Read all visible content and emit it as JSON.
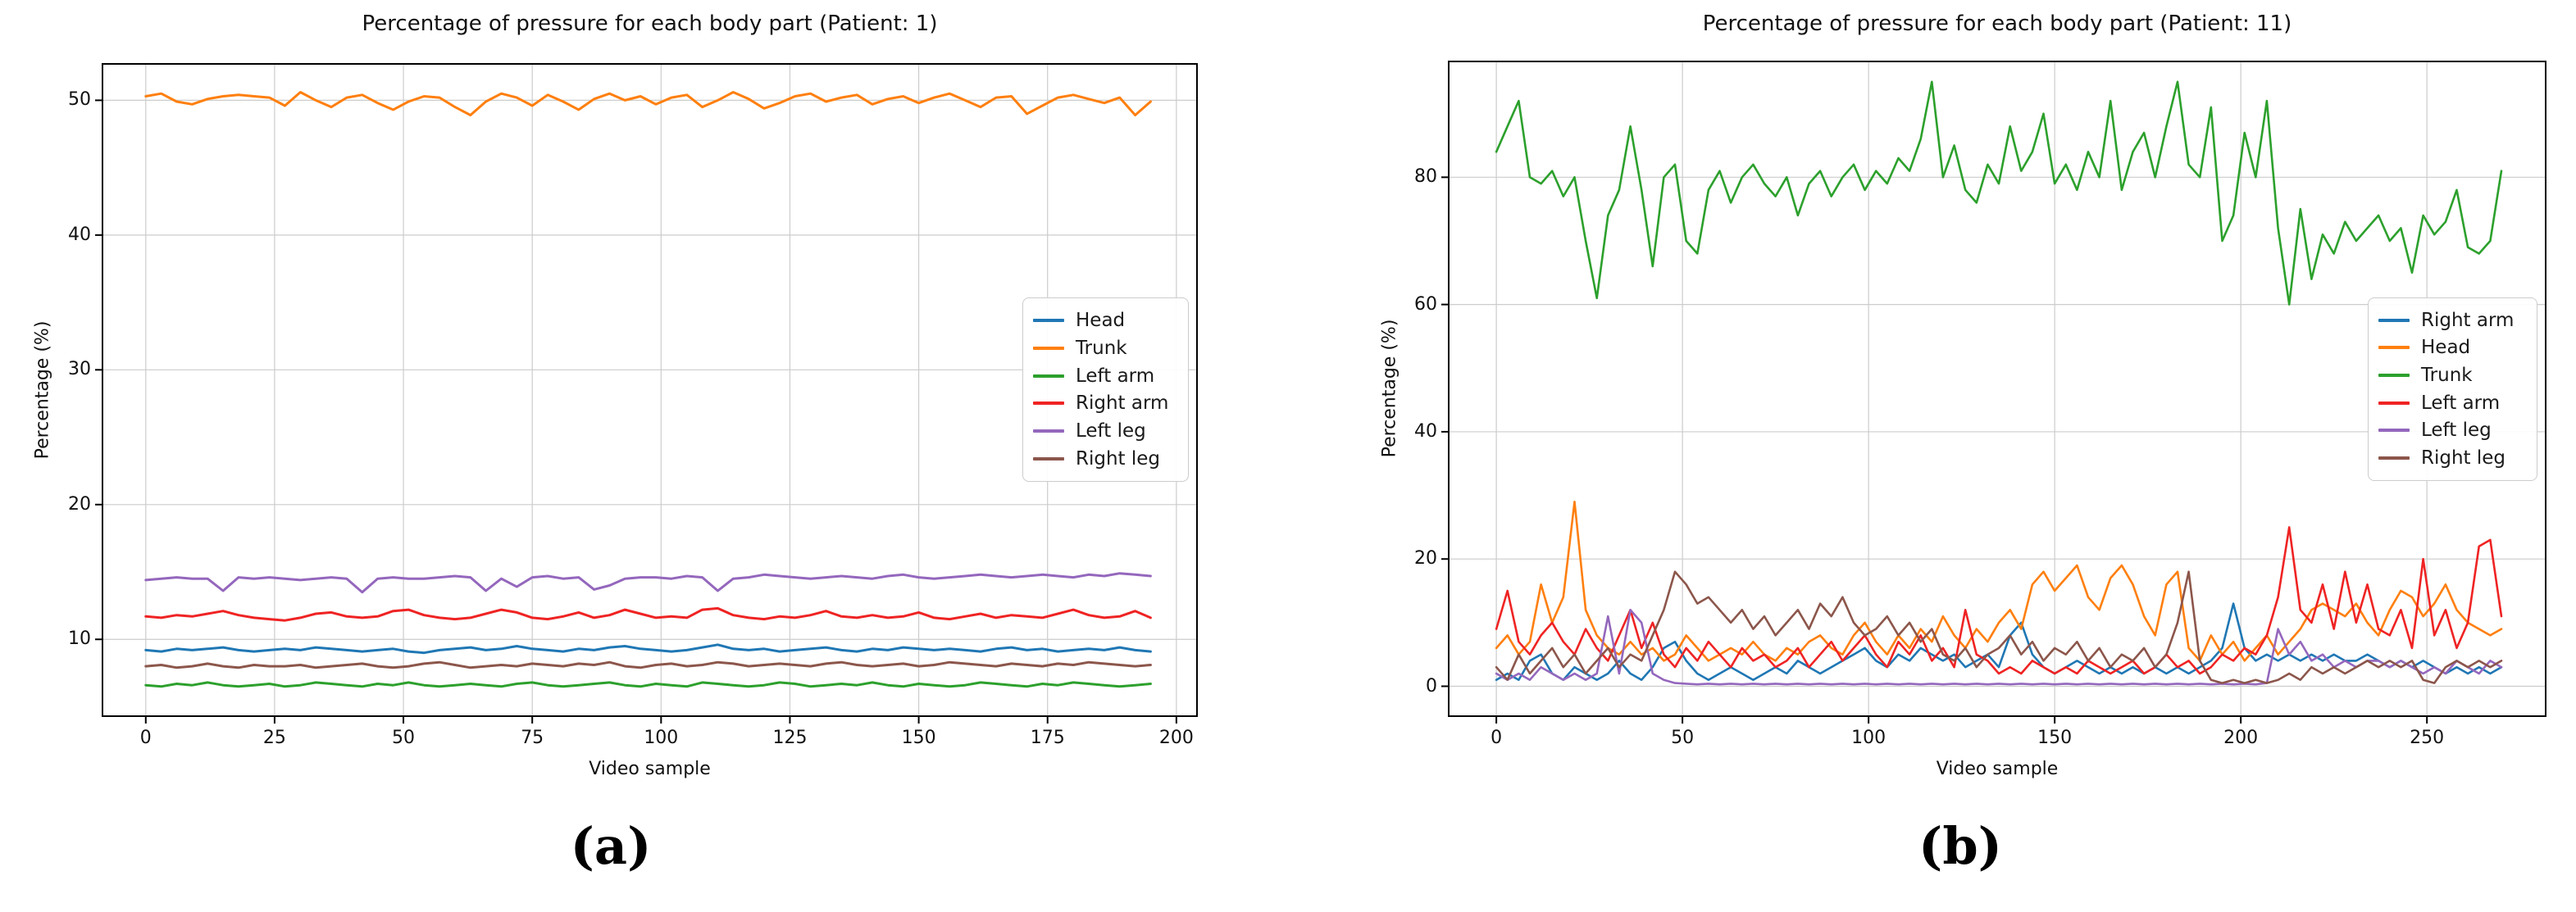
{
  "captions": {
    "a": "(a)",
    "b": "(b)"
  },
  "chart_data": [
    {
      "type": "line",
      "title": "Percentage of pressure for each body part (Patient: 1)",
      "xlabel": "Video sample",
      "ylabel": "Percentage (%)",
      "xlim": [
        -8.4,
        204.0
      ],
      "ylim": [
        4.3,
        52.7
      ],
      "x_ticks": [
        0,
        25,
        50,
        75,
        100,
        125,
        150,
        175,
        200
      ],
      "y_ticks": [
        10,
        20,
        30,
        40,
        50
      ],
      "grid": true,
      "legend_position": "center right",
      "x_start": 0,
      "x_step": 3,
      "series": [
        {
          "name": "Head",
          "color": "#1f77b4",
          "values": [
            9.2,
            9.1,
            9.3,
            9.2,
            9.3,
            9.4,
            9.2,
            9.1,
            9.2,
            9.3,
            9.2,
            9.4,
            9.3,
            9.2,
            9.1,
            9.2,
            9.3,
            9.1,
            9.0,
            9.2,
            9.3,
            9.4,
            9.2,
            9.3,
            9.5,
            9.3,
            9.2,
            9.1,
            9.3,
            9.2,
            9.4,
            9.5,
            9.3,
            9.2,
            9.1,
            9.2,
            9.4,
            9.6,
            9.3,
            9.2,
            9.3,
            9.1,
            9.2,
            9.3,
            9.4,
            9.2,
            9.1,
            9.3,
            9.2,
            9.4,
            9.3,
            9.2,
            9.3,
            9.2,
            9.1,
            9.3,
            9.4,
            9.2,
            9.3,
            9.1,
            9.2,
            9.3,
            9.2,
            9.4,
            9.2,
            9.1
          ]
        },
        {
          "name": "Trunk",
          "color": "#ff7f0e",
          "values": [
            50.3,
            50.5,
            49.9,
            49.7,
            50.1,
            50.3,
            50.4,
            50.3,
            50.2,
            49.6,
            50.6,
            50.0,
            49.5,
            50.2,
            50.4,
            49.8,
            49.3,
            49.9,
            50.3,
            50.2,
            49.5,
            48.9,
            49.9,
            50.5,
            50.2,
            49.6,
            50.4,
            49.9,
            49.3,
            50.1,
            50.5,
            50.0,
            50.3,
            49.7,
            50.2,
            50.4,
            49.5,
            50.0,
            50.6,
            50.1,
            49.4,
            49.8,
            50.3,
            50.5,
            49.9,
            50.2,
            50.4,
            49.7,
            50.1,
            50.3,
            49.8,
            50.2,
            50.5,
            50.0,
            49.5,
            50.2,
            50.3,
            49.0,
            49.6,
            50.2,
            50.4,
            50.1,
            49.8,
            50.2,
            48.9,
            49.9
          ]
        },
        {
          "name": "Left arm",
          "color": "#2ca02c",
          "values": [
            6.6,
            6.5,
            6.7,
            6.6,
            6.8,
            6.6,
            6.5,
            6.6,
            6.7,
            6.5,
            6.6,
            6.8,
            6.7,
            6.6,
            6.5,
            6.7,
            6.6,
            6.8,
            6.6,
            6.5,
            6.6,
            6.7,
            6.6,
            6.5,
            6.7,
            6.8,
            6.6,
            6.5,
            6.6,
            6.7,
            6.8,
            6.6,
            6.5,
            6.7,
            6.6,
            6.5,
            6.8,
            6.7,
            6.6,
            6.5,
            6.6,
            6.8,
            6.7,
            6.5,
            6.6,
            6.7,
            6.6,
            6.8,
            6.6,
            6.5,
            6.7,
            6.6,
            6.5,
            6.6,
            6.8,
            6.7,
            6.6,
            6.5,
            6.7,
            6.6,
            6.8,
            6.7,
            6.6,
            6.5,
            6.6,
            6.7
          ]
        },
        {
          "name": "Right arm",
          "color": "#ef2323",
          "values": [
            11.7,
            11.6,
            11.8,
            11.7,
            11.9,
            12.1,
            11.8,
            11.6,
            11.5,
            11.4,
            11.6,
            11.9,
            12.0,
            11.7,
            11.6,
            11.7,
            12.1,
            12.2,
            11.8,
            11.6,
            11.5,
            11.6,
            11.9,
            12.2,
            12.0,
            11.6,
            11.5,
            11.7,
            12.0,
            11.6,
            11.8,
            12.2,
            11.9,
            11.6,
            11.7,
            11.6,
            12.2,
            12.3,
            11.8,
            11.6,
            11.5,
            11.7,
            11.6,
            11.8,
            12.1,
            11.7,
            11.6,
            11.8,
            11.6,
            11.7,
            12.0,
            11.6,
            11.5,
            11.7,
            11.9,
            11.6,
            11.8,
            11.7,
            11.6,
            11.9,
            12.2,
            11.8,
            11.6,
            11.7,
            12.1,
            11.6
          ]
        },
        {
          "name": "Left leg",
          "color": "#9467bd",
          "values": [
            14.4,
            14.5,
            14.6,
            14.5,
            14.5,
            13.6,
            14.6,
            14.5,
            14.6,
            14.5,
            14.4,
            14.5,
            14.6,
            14.5,
            13.5,
            14.5,
            14.6,
            14.5,
            14.5,
            14.6,
            14.7,
            14.6,
            13.6,
            14.5,
            13.9,
            14.6,
            14.7,
            14.5,
            14.6,
            13.7,
            14.0,
            14.5,
            14.6,
            14.6,
            14.5,
            14.7,
            14.6,
            13.6,
            14.5,
            14.6,
            14.8,
            14.7,
            14.6,
            14.5,
            14.6,
            14.7,
            14.6,
            14.5,
            14.7,
            14.8,
            14.6,
            14.5,
            14.6,
            14.7,
            14.8,
            14.7,
            14.6,
            14.7,
            14.8,
            14.7,
            14.6,
            14.8,
            14.7,
            14.9,
            14.8,
            14.7
          ]
        },
        {
          "name": "Right leg",
          "color": "#8c564b",
          "values": [
            8.0,
            8.1,
            7.9,
            8.0,
            8.2,
            8.0,
            7.9,
            8.1,
            8.0,
            8.0,
            8.1,
            7.9,
            8.0,
            8.1,
            8.2,
            8.0,
            7.9,
            8.0,
            8.2,
            8.3,
            8.1,
            7.9,
            8.0,
            8.1,
            8.0,
            8.2,
            8.1,
            8.0,
            8.2,
            8.1,
            8.3,
            8.0,
            7.9,
            8.1,
            8.2,
            8.0,
            8.1,
            8.3,
            8.2,
            8.0,
            8.1,
            8.2,
            8.1,
            8.0,
            8.2,
            8.3,
            8.1,
            8.0,
            8.1,
            8.2,
            8.0,
            8.1,
            8.3,
            8.2,
            8.1,
            8.0,
            8.2,
            8.1,
            8.0,
            8.2,
            8.1,
            8.3,
            8.2,
            8.1,
            8.0,
            8.1
          ]
        }
      ]
    },
    {
      "type": "line",
      "title": "Percentage of pressure for each body part (Patient: 11)",
      "xlabel": "Video sample",
      "ylabel": "Percentage (%)",
      "xlim": [
        -12.8,
        281.9
      ],
      "ylim": [
        -4.7,
        98.2
      ],
      "x_ticks": [
        0,
        50,
        100,
        150,
        200,
        250
      ],
      "y_ticks": [
        0,
        20,
        40,
        60,
        80
      ],
      "grid": true,
      "legend_position": "center right",
      "x_start": 0,
      "x_step": 3,
      "series": [
        {
          "name": "Right arm",
          "color": "#1f77b4",
          "values": [
            1,
            2,
            1,
            4,
            5,
            2,
            1,
            3,
            2,
            1,
            2,
            4,
            2,
            1,
            3,
            6,
            7,
            4,
            2,
            1,
            2,
            3,
            2,
            1,
            2,
            3,
            2,
            4,
            3,
            2,
            3,
            4,
            5,
            6,
            4,
            3,
            5,
            4,
            6,
            5,
            4,
            5,
            3,
            4,
            5,
            3,
            8,
            10,
            5,
            3,
            2,
            3,
            4,
            3,
            2,
            3,
            2,
            3,
            2,
            3,
            2,
            3,
            2,
            3,
            4,
            6,
            13,
            6,
            4,
            5,
            4,
            5,
            4,
            5,
            4,
            5,
            4,
            4,
            5,
            4,
            3,
            4,
            3,
            4,
            3,
            2,
            3,
            2,
            3,
            2,
            3
          ]
        },
        {
          "name": "Head",
          "color": "#ff7f0e",
          "values": [
            6,
            8,
            5,
            7,
            16,
            10,
            14,
            29,
            12,
            8,
            6,
            5,
            7,
            5,
            6,
            4,
            5,
            8,
            6,
            4,
            5,
            6,
            5,
            7,
            5,
            4,
            6,
            5,
            7,
            8,
            6,
            5,
            8,
            10,
            7,
            5,
            8,
            6,
            9,
            7,
            11,
            8,
            6,
            9,
            7,
            10,
            12,
            9,
            16,
            18,
            15,
            17,
            19,
            14,
            12,
            17,
            19,
            16,
            11,
            8,
            16,
            18,
            6,
            4,
            8,
            5,
            7,
            4,
            6,
            8,
            5,
            7,
            9,
            12,
            13,
            12,
            11,
            13,
            10,
            8,
            12,
            15,
            14,
            11,
            13,
            16,
            12,
            10,
            9,
            8,
            9
          ]
        },
        {
          "name": "Trunk",
          "color": "#2ca02c",
          "values": [
            84,
            88,
            92,
            80,
            79,
            81,
            77,
            80,
            70,
            61,
            74,
            78,
            88,
            78,
            66,
            80,
            82,
            70,
            68,
            78,
            81,
            76,
            80,
            82,
            79,
            77,
            80,
            74,
            79,
            81,
            77,
            80,
            82,
            78,
            81,
            79,
            83,
            81,
            86,
            95,
            80,
            85,
            78,
            76,
            82,
            79,
            88,
            81,
            84,
            90,
            79,
            82,
            78,
            84,
            80,
            92,
            78,
            84,
            87,
            80,
            88,
            95,
            82,
            80,
            91,
            70,
            74,
            87,
            80,
            92,
            72,
            60,
            75,
            64,
            71,
            68,
            73,
            70,
            72,
            74,
            70,
            72,
            65,
            74,
            71,
            73,
            78,
            69,
            68,
            70,
            81
          ]
        },
        {
          "name": "Left arm",
          "color": "#ef2323",
          "values": [
            9,
            15,
            7,
            5,
            8,
            10,
            7,
            5,
            9,
            6,
            4,
            8,
            12,
            6,
            10,
            5,
            3,
            6,
            4,
            7,
            5,
            3,
            6,
            4,
            5,
            3,
            4,
            6,
            3,
            5,
            7,
            4,
            6,
            8,
            5,
            3,
            7,
            5,
            8,
            4,
            6,
            3,
            12,
            5,
            4,
            2,
            3,
            2,
            4,
            3,
            2,
            3,
            2,
            4,
            3,
            2,
            3,
            4,
            2,
            3,
            5,
            3,
            4,
            2,
            3,
            5,
            4,
            6,
            5,
            8,
            14,
            25,
            12,
            10,
            16,
            9,
            18,
            10,
            16,
            9,
            8,
            12,
            6,
            20,
            8,
            12,
            6,
            10,
            22,
            23,
            11
          ]
        },
        {
          "name": "Left leg",
          "color": "#9467bd",
          "values": [
            2,
            1,
            2,
            1,
            3,
            2,
            1,
            2,
            1,
            2,
            11,
            2,
            12,
            10,
            2,
            1,
            0.5,
            0.4,
            0.3,
            0.4,
            0.3,
            0.4,
            0.3,
            0.4,
            0.3,
            0.4,
            0.3,
            0.4,
            0.3,
            0.4,
            0.3,
            0.4,
            0.3,
            0.4,
            0.3,
            0.4,
            0.3,
            0.4,
            0.3,
            0.4,
            0.3,
            0.4,
            0.3,
            0.4,
            0.3,
            0.4,
            0.3,
            0.4,
            0.3,
            0.4,
            0.3,
            0.4,
            0.3,
            0.4,
            0.3,
            0.4,
            0.3,
            0.4,
            0.3,
            0.4,
            0.3,
            0.4,
            0.3,
            0.4,
            0.3,
            0.4,
            0.3,
            0.4,
            0.3,
            0.5,
            9,
            5,
            7,
            4,
            5,
            3,
            4,
            3,
            4,
            4,
            3,
            4,
            3,
            2,
            3,
            2,
            4,
            3,
            2,
            4,
            3
          ]
        },
        {
          "name": "Right leg",
          "color": "#8c564b",
          "values": [
            3,
            1,
            5,
            2,
            4,
            6,
            3,
            5,
            2,
            4,
            6,
            3,
            5,
            4,
            8,
            12,
            18,
            16,
            13,
            14,
            12,
            10,
            12,
            9,
            11,
            8,
            10,
            12,
            9,
            13,
            11,
            14,
            10,
            8,
            9,
            11,
            8,
            10,
            7,
            9,
            5,
            4,
            6,
            3,
            5,
            6,
            8,
            5,
            7,
            4,
            6,
            5,
            7,
            4,
            6,
            3,
            5,
            4,
            6,
            3,
            5,
            10,
            18,
            4,
            1,
            0.5,
            1,
            0.5,
            1,
            0.5,
            1,
            2,
            1,
            3,
            2,
            3,
            2,
            3,
            4,
            3,
            4,
            3,
            4,
            1,
            0.5,
            3,
            4,
            3,
            4,
            3,
            4
          ]
        }
      ]
    }
  ]
}
